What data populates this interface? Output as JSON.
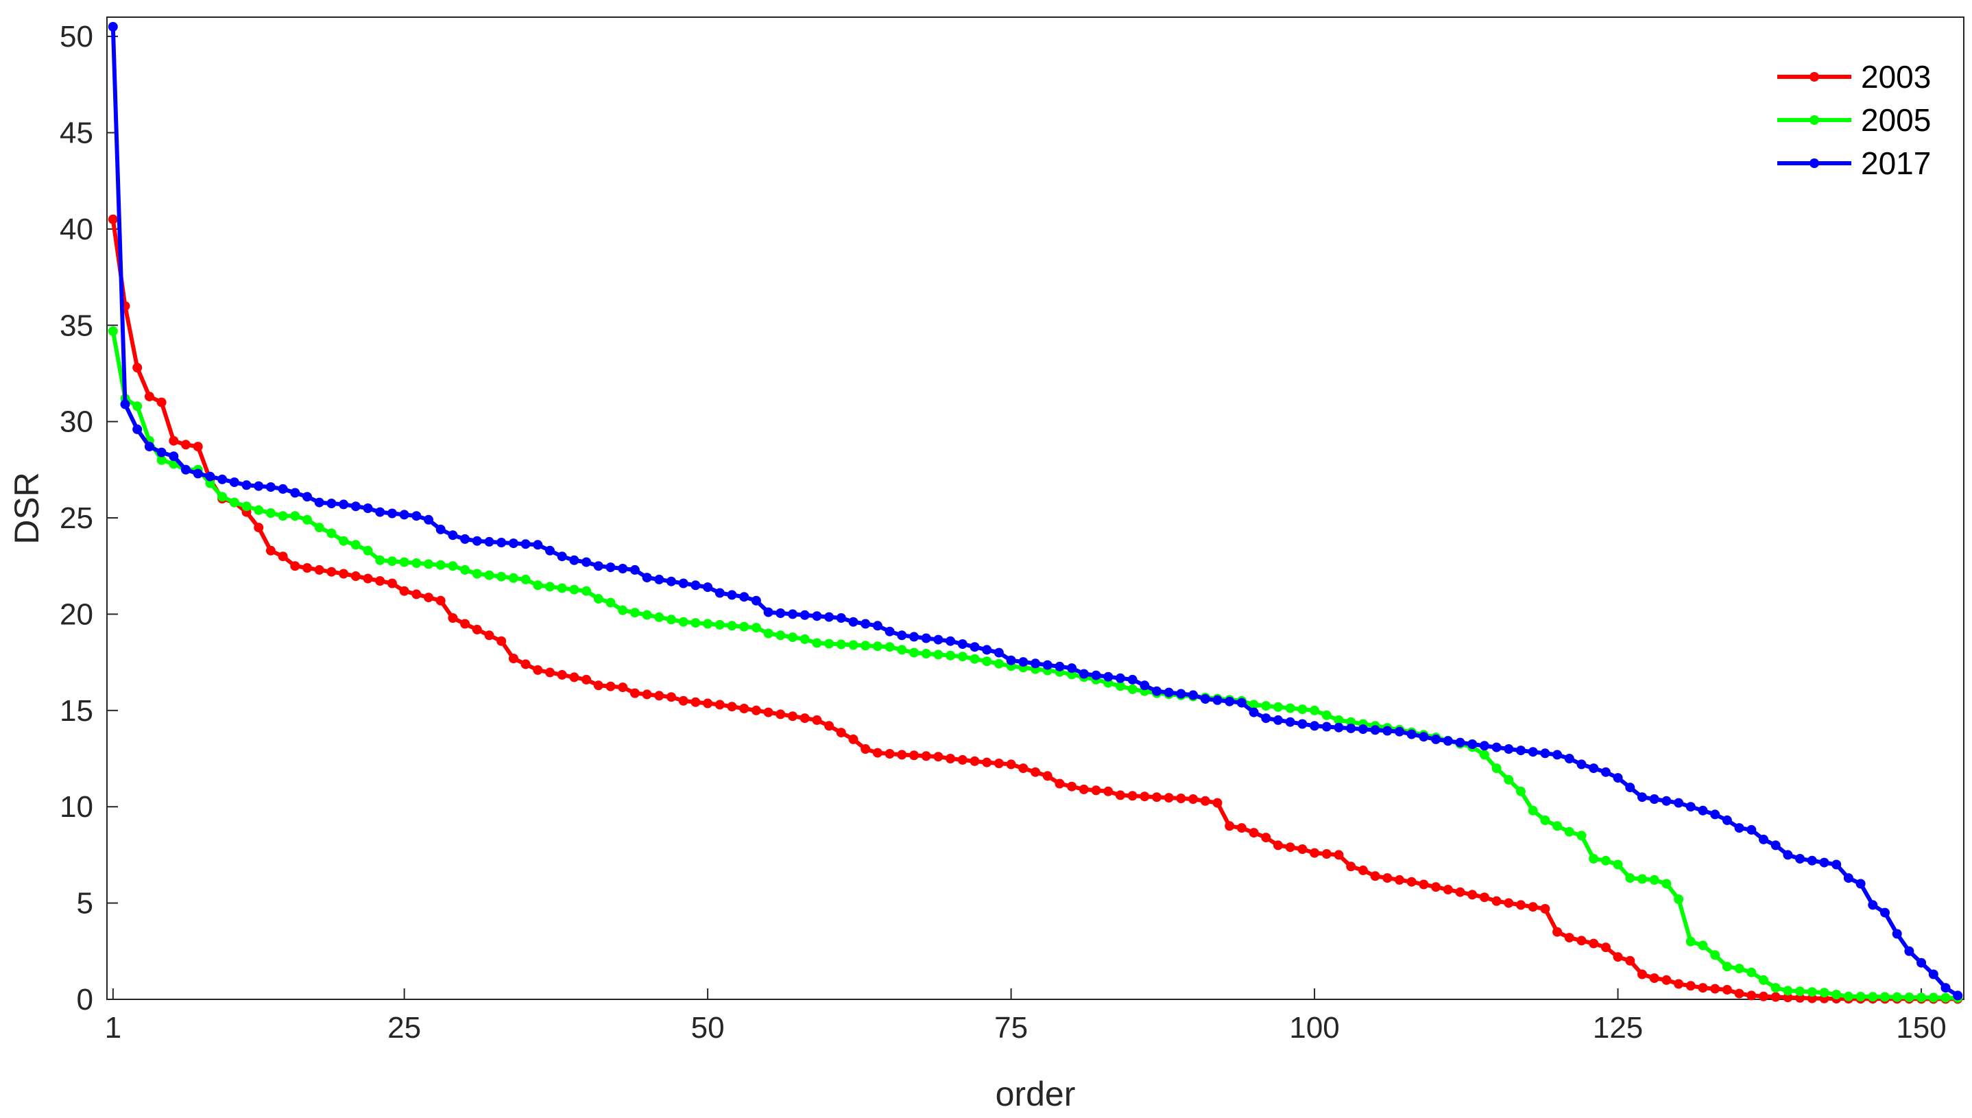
{
  "chart_data": {
    "type": "line",
    "xlabel": "order",
    "ylabel": "DSR",
    "xlim": [
      0.5,
      153.5
    ],
    "ylim": [
      0,
      51
    ],
    "xticks": [
      1,
      25,
      50,
      75,
      100,
      125,
      150
    ],
    "yticks": [
      0,
      5,
      10,
      15,
      20,
      25,
      30,
      35,
      40,
      45,
      50
    ],
    "grid": false,
    "legend_position": "top-right",
    "series": [
      {
        "name": "2003",
        "color": "#ff0000",
        "knots": [
          [
            1,
            40.5
          ],
          [
            2,
            36
          ],
          [
            3,
            32.8
          ],
          [
            4,
            31.3
          ],
          [
            5,
            31
          ],
          [
            6,
            29
          ],
          [
            7,
            28.8
          ],
          [
            8,
            28.7
          ],
          [
            9,
            27
          ],
          [
            10,
            26
          ],
          [
            11,
            25.8
          ],
          [
            12,
            25.3
          ],
          [
            13,
            24.5
          ],
          [
            14,
            23.3
          ],
          [
            15,
            23
          ],
          [
            16,
            22.5
          ],
          [
            20,
            22.1
          ],
          [
            24,
            21.6
          ],
          [
            25,
            21.2
          ],
          [
            28,
            20.7
          ],
          [
            29,
            19.8
          ],
          [
            30,
            19.5
          ],
          [
            33,
            18.6
          ],
          [
            34,
            17.7
          ],
          [
            35,
            17.4
          ],
          [
            36,
            17.1
          ],
          [
            40,
            16.6
          ],
          [
            41,
            16.3
          ],
          [
            43,
            16.2
          ],
          [
            44,
            15.9
          ],
          [
            47,
            15.7
          ],
          [
            48,
            15.5
          ],
          [
            51,
            15.3
          ],
          [
            56,
            14.8
          ],
          [
            59,
            14.5
          ],
          [
            60,
            14.2
          ],
          [
            62,
            13.5
          ],
          [
            63,
            13
          ],
          [
            64,
            12.8
          ],
          [
            66,
            12.7
          ],
          [
            69,
            12.6
          ],
          [
            70,
            12.5
          ],
          [
            73,
            12.3
          ],
          [
            75,
            12.2
          ],
          [
            77,
            11.8
          ],
          [
            78,
            11.6
          ],
          [
            79,
            11.2
          ],
          [
            81,
            10.9
          ],
          [
            83,
            10.8
          ],
          [
            84,
            10.6
          ],
          [
            90,
            10.4
          ],
          [
            92,
            10.2
          ],
          [
            93,
            9
          ],
          [
            94,
            8.9
          ],
          [
            96,
            8.4
          ],
          [
            97,
            8
          ],
          [
            99,
            7.8
          ],
          [
            100,
            7.6
          ],
          [
            102,
            7.5
          ],
          [
            103,
            6.9
          ],
          [
            104,
            6.7
          ],
          [
            105,
            6.4
          ],
          [
            107,
            6.2
          ],
          [
            108,
            6.1
          ],
          [
            111,
            5.7
          ],
          [
            114,
            5.3
          ],
          [
            115,
            5.1
          ],
          [
            119,
            4.7
          ],
          [
            120,
            3.5
          ],
          [
            121,
            3.2
          ],
          [
            123,
            2.9
          ],
          [
            124,
            2.7
          ],
          [
            125,
            2.2
          ],
          [
            126,
            2
          ],
          [
            127,
            1.3
          ],
          [
            128,
            1.1
          ],
          [
            129,
            1
          ],
          [
            130,
            0.8
          ],
          [
            131,
            0.7
          ],
          [
            132,
            0.6
          ],
          [
            134,
            0.5
          ],
          [
            135,
            0.3
          ],
          [
            136,
            0.2
          ],
          [
            137,
            0.15
          ],
          [
            139,
            0.1
          ],
          [
            141,
            0.05
          ],
          [
            144,
            0.03
          ],
          [
            153,
            0.02
          ]
        ]
      },
      {
        "name": "2005",
        "color": "#00ff00",
        "knots": [
          [
            1,
            34.7
          ],
          [
            2,
            31.2
          ],
          [
            3,
            30.8
          ],
          [
            4,
            29
          ],
          [
            5,
            28
          ],
          [
            6,
            27.8
          ],
          [
            7,
            27.5
          ],
          [
            8,
            27.5
          ],
          [
            9,
            26.8
          ],
          [
            10,
            26.1
          ],
          [
            11,
            25.8
          ],
          [
            12,
            25.6
          ],
          [
            13,
            25.4
          ],
          [
            15,
            25.1
          ],
          [
            16,
            25.1
          ],
          [
            17,
            24.9
          ],
          [
            18,
            24.5
          ],
          [
            19,
            24.2
          ],
          [
            20,
            23.8
          ],
          [
            21,
            23.6
          ],
          [
            22,
            23.3
          ],
          [
            23,
            22.8
          ],
          [
            29,
            22.5
          ],
          [
            31,
            22.1
          ],
          [
            35,
            21.8
          ],
          [
            36,
            21.5
          ],
          [
            40,
            21.2
          ],
          [
            41,
            20.8
          ],
          [
            42,
            20.6
          ],
          [
            43,
            20.2
          ],
          [
            48,
            19.6
          ],
          [
            54,
            19.3
          ],
          [
            55,
            19
          ],
          [
            58,
            18.7
          ],
          [
            59,
            18.5
          ],
          [
            65,
            18.3
          ],
          [
            67,
            18
          ],
          [
            71,
            17.8
          ],
          [
            75,
            17.3
          ],
          [
            79,
            17
          ],
          [
            82,
            16.6
          ],
          [
            85,
            16.1
          ],
          [
            87,
            15.9
          ],
          [
            94,
            15.5
          ],
          [
            95,
            15.3
          ],
          [
            100,
            15
          ],
          [
            102,
            14.5
          ],
          [
            104,
            14.3
          ],
          [
            107,
            14
          ],
          [
            110,
            13.6
          ],
          [
            113,
            13.1
          ],
          [
            114,
            12.7
          ],
          [
            115,
            12
          ],
          [
            116,
            11.4
          ],
          [
            117,
            10.8
          ],
          [
            118,
            9.8
          ],
          [
            119,
            9.3
          ],
          [
            121,
            8.7
          ],
          [
            122,
            8.5
          ],
          [
            123,
            7.3
          ],
          [
            124,
            7.2
          ],
          [
            125,
            7
          ],
          [
            126,
            6.3
          ],
          [
            128,
            6.2
          ],
          [
            129,
            6
          ],
          [
            130,
            5.2
          ],
          [
            131,
            3
          ],
          [
            132,
            2.8
          ],
          [
            133,
            2.3
          ],
          [
            134,
            1.7
          ],
          [
            135,
            1.6
          ],
          [
            136,
            1.4
          ],
          [
            137,
            1
          ],
          [
            138,
            0.6
          ],
          [
            139,
            0.45
          ],
          [
            142,
            0.35
          ],
          [
            143,
            0.25
          ],
          [
            144,
            0.15
          ],
          [
            150,
            0.1
          ],
          [
            153,
            0.08
          ]
        ]
      },
      {
        "name": "2017",
        "color": "#0000ff",
        "knots": [
          [
            1,
            50.5
          ],
          [
            2,
            30.9
          ],
          [
            3,
            29.6
          ],
          [
            4,
            28.7
          ],
          [
            5,
            28.4
          ],
          [
            6,
            28.2
          ],
          [
            7,
            27.5
          ],
          [
            8,
            27.3
          ],
          [
            10,
            27
          ],
          [
            12,
            26.7
          ],
          [
            14,
            26.6
          ],
          [
            15,
            26.5
          ],
          [
            16,
            26.3
          ],
          [
            17,
            26.1
          ],
          [
            18,
            25.8
          ],
          [
            20,
            25.7
          ],
          [
            22,
            25.5
          ],
          [
            23,
            25.3
          ],
          [
            26,
            25.1
          ],
          [
            27,
            24.9
          ],
          [
            28,
            24.4
          ],
          [
            29,
            24.1
          ],
          [
            30,
            23.9
          ],
          [
            31,
            23.8
          ],
          [
            36,
            23.6
          ],
          [
            37,
            23.3
          ],
          [
            38,
            23
          ],
          [
            39,
            22.8
          ],
          [
            40,
            22.7
          ],
          [
            41,
            22.5
          ],
          [
            44,
            22.3
          ],
          [
            45,
            21.9
          ],
          [
            50,
            21.4
          ],
          [
            51,
            21.1
          ],
          [
            53,
            20.9
          ],
          [
            54,
            20.7
          ],
          [
            55,
            20.1
          ],
          [
            61,
            19.8
          ],
          [
            62,
            19.6
          ],
          [
            64,
            19.4
          ],
          [
            65,
            19.1
          ],
          [
            66,
            18.9
          ],
          [
            70,
            18.6
          ],
          [
            72,
            18.3
          ],
          [
            74,
            18
          ],
          [
            75,
            17.6
          ],
          [
            80,
            17.2
          ],
          [
            81,
            16.9
          ],
          [
            85,
            16.6
          ],
          [
            86,
            16.3
          ],
          [
            87,
            16
          ],
          [
            90,
            15.8
          ],
          [
            91,
            15.6
          ],
          [
            94,
            15.4
          ],
          [
            95,
            14.9
          ],
          [
            96,
            14.6
          ],
          [
            98,
            14.4
          ],
          [
            100,
            14.2
          ],
          [
            107,
            13.9
          ],
          [
            110,
            13.5
          ],
          [
            116,
            13
          ],
          [
            120,
            12.7
          ],
          [
            121,
            12.5
          ],
          [
            122,
            12.2
          ],
          [
            124,
            11.8
          ],
          [
            125,
            11.5
          ],
          [
            126,
            11
          ],
          [
            127,
            10.5
          ],
          [
            129,
            10.3
          ],
          [
            130,
            10.2
          ],
          [
            131,
            10
          ],
          [
            132,
            9.8
          ],
          [
            133,
            9.6
          ],
          [
            134,
            9.3
          ],
          [
            135,
            8.9
          ],
          [
            136,
            8.8
          ],
          [
            137,
            8.3
          ],
          [
            138,
            8
          ],
          [
            139,
            7.5
          ],
          [
            140,
            7.3
          ],
          [
            141,
            7.2
          ],
          [
            143,
            7
          ],
          [
            144,
            6.3
          ],
          [
            145,
            6
          ],
          [
            146,
            4.9
          ],
          [
            147,
            4.5
          ],
          [
            148,
            3.4
          ],
          [
            149,
            2.5
          ],
          [
            150,
            1.9
          ],
          [
            151,
            1.3
          ],
          [
            152,
            0.6
          ],
          [
            153,
            0.2
          ]
        ]
      }
    ]
  }
}
